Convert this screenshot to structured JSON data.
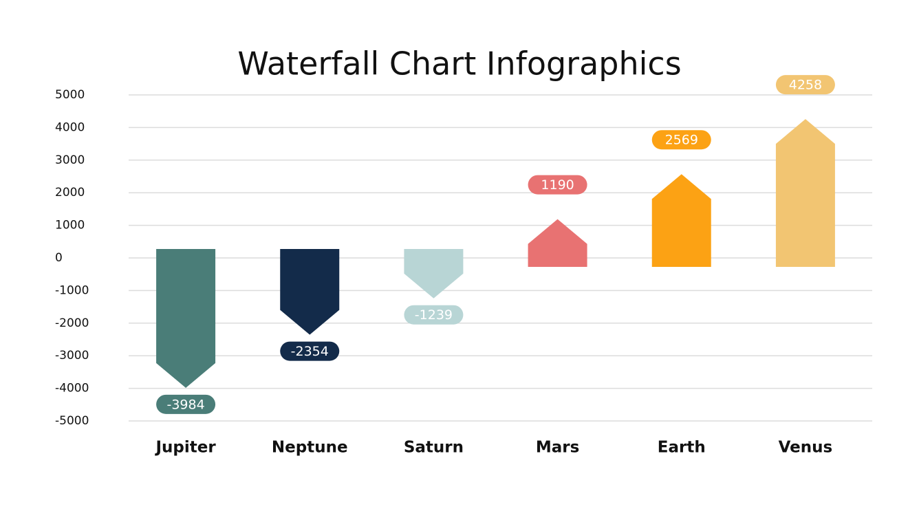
{
  "chart_data": {
    "type": "bar",
    "title": "Waterfall Chart Infographics",
    "categories": [
      "Jupiter",
      "Neptune",
      "Saturn",
      "Mars",
      "Earth",
      "Venus"
    ],
    "values": [
      -3984,
      -2354,
      -1239,
      1190,
      2569,
      4258
    ],
    "colors": [
      "#4a7d78",
      "#132b4a",
      "#b8d5d5",
      "#e87272",
      "#fca214",
      "#f2c572"
    ],
    "ylim": [
      -5000,
      5000
    ],
    "yticks": [
      -5000,
      -4000,
      -3000,
      -2000,
      -1000,
      0,
      1000,
      2000,
      3000,
      4000,
      5000
    ],
    "grid": true
  }
}
